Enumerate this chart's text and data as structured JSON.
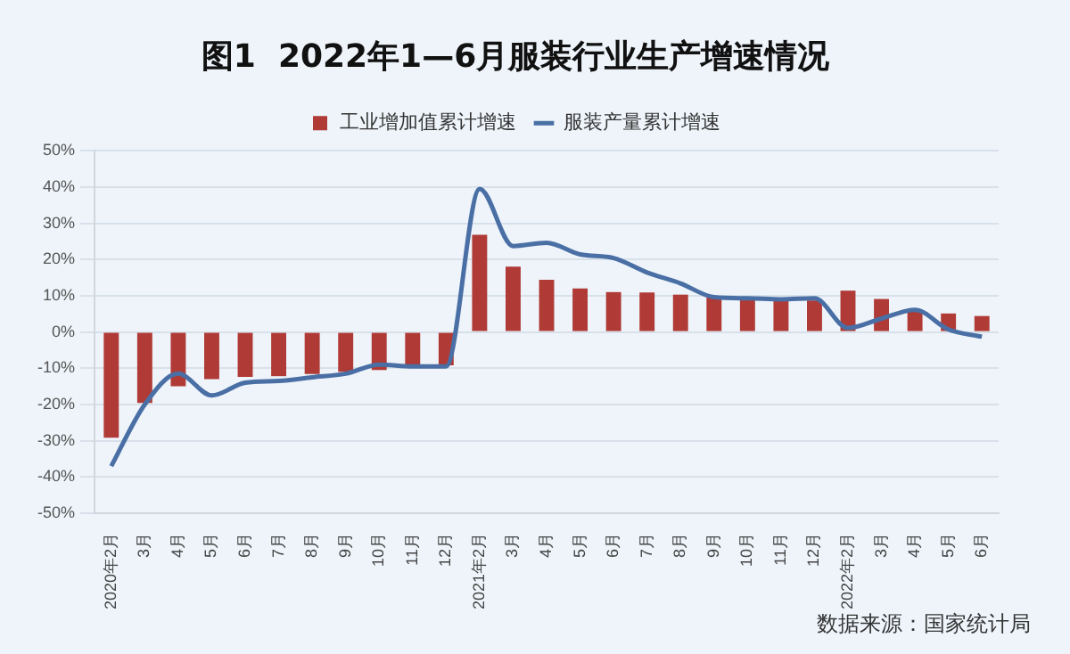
{
  "chart_data": {
    "type": "bar",
    "title": "图1  2022年1—6月服装行业生产增速情况",
    "categories": [
      "2020年2月",
      "3月",
      "4月",
      "5月",
      "6月",
      "7月",
      "8月",
      "9月",
      "10月",
      "11月",
      "12月",
      "2021年2月",
      "3月",
      "4月",
      "5月",
      "6月",
      "7月",
      "8月",
      "9月",
      "10月",
      "11月",
      "12月",
      "2022年2月",
      "3月",
      "4月",
      "5月",
      "6月"
    ],
    "series": [
      {
        "name": "工业增加值累计增速",
        "color": "#b03a35",
        "values": [
          -29.2,
          -19.6,
          -15,
          -13,
          -12.4,
          -12.2,
          -11.6,
          -11,
          -10.5,
          -9.8,
          -9.2,
          26.8,
          18,
          14.4,
          12,
          11,
          10.9,
          10.3,
          9.7,
          9,
          8.9,
          8.7,
          11.4,
          9.1,
          6.1,
          5.1,
          4.4
        ]
      },
      {
        "name": "服装产量累计增速",
        "type": "line",
        "color": "#4a6fa5",
        "values": [
          -37,
          -20,
          -11.5,
          -17.5,
          -14,
          -13.5,
          -12.5,
          -11.5,
          -9,
          -9.5,
          -9.5,
          39.5,
          23.7,
          24.6,
          21.4,
          20.4,
          16.4,
          13.4,
          9.6,
          9.3,
          9,
          9.3,
          1.1,
          3.7,
          6.1,
          0.7,
          -1.3
        ]
      }
    ],
    "ylim": [
      -50,
      50
    ],
    "yticks": [
      {
        "value": -50,
        "label": "-50%"
      },
      {
        "value": -40,
        "label": "-40%"
      },
      {
        "value": -30,
        "label": "-30%"
      },
      {
        "value": -20,
        "label": "-20%"
      },
      {
        "value": -10,
        "label": "-10%"
      },
      {
        "value": 0,
        "label": "0%"
      },
      {
        "value": 10,
        "label": "10%"
      },
      {
        "value": 20,
        "label": "20%"
      },
      {
        "value": 30,
        "label": "30%"
      },
      {
        "value": 40,
        "label": "40%"
      },
      {
        "value": 50,
        "label": "50%"
      }
    ],
    "grid": "y",
    "legend": "top",
    "marker": "none",
    "annotations": [
      "数据来源：国家统计局"
    ]
  }
}
